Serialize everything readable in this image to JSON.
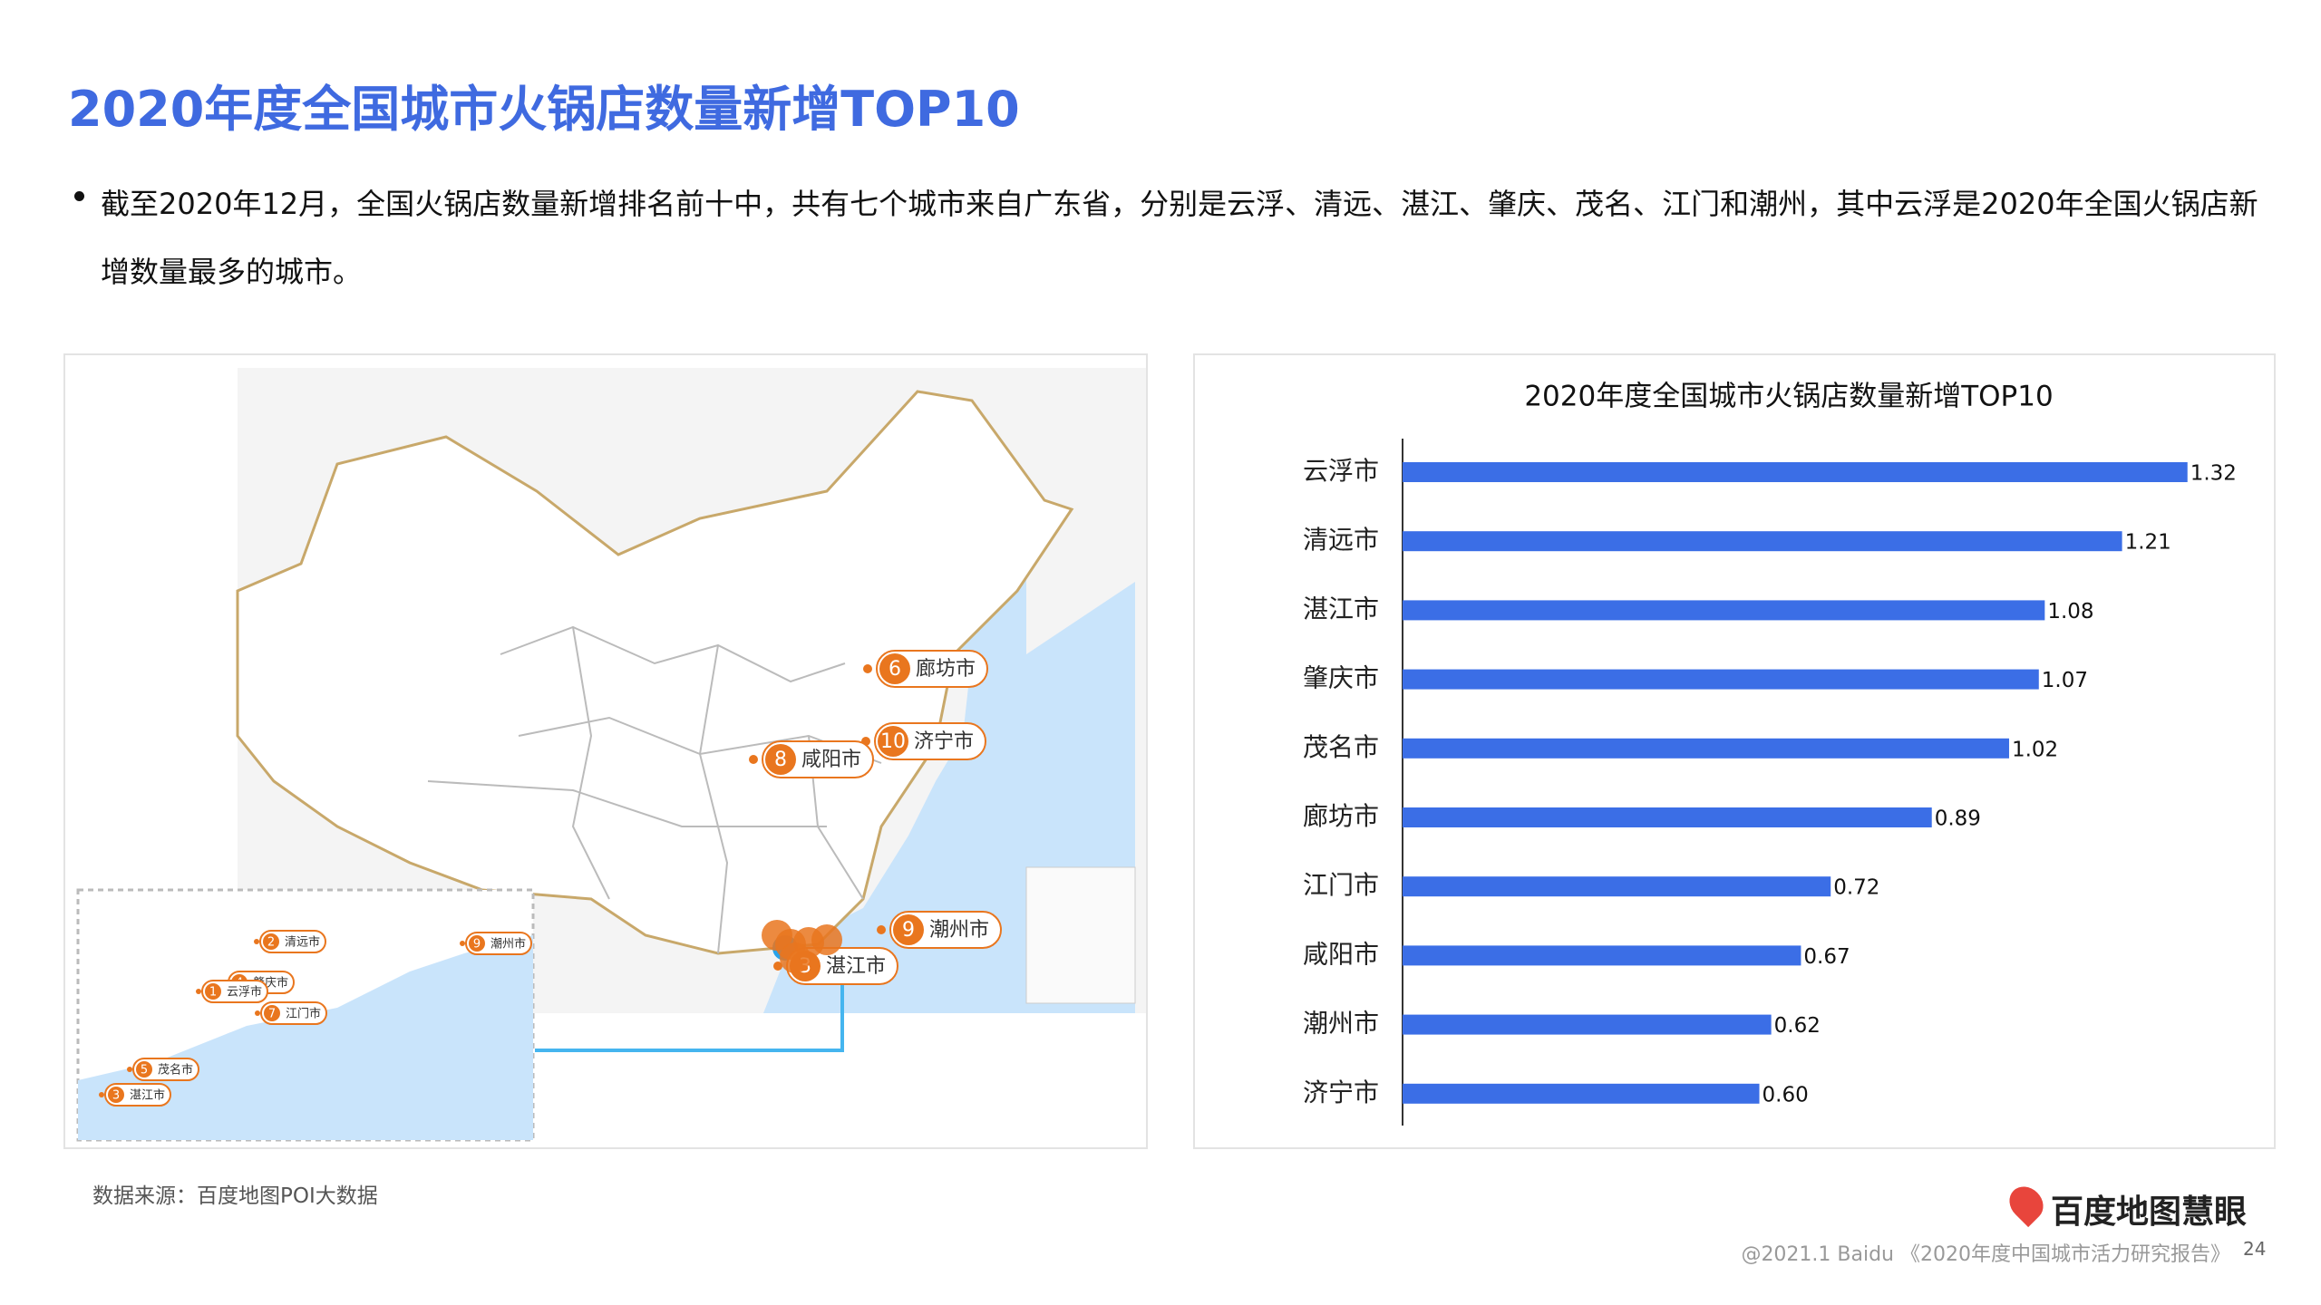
{
  "header": {
    "title": "2020年度全国城市火锅店数量新增TOP10",
    "bullet": "截至2020年12月，全国火锅店数量新增排名前十中，共有七个城市来自广东省，分别是云浮、清远、湛江、肇庆、茂名、江门和潮州，其中云浮是2020年全国火锅店新增数量最多的城市。"
  },
  "map": {
    "markers": [
      {
        "rank": 6,
        "label": "廊坊市"
      },
      {
        "rank": 10,
        "label": "济宁市"
      },
      {
        "rank": 8,
        "label": "咸阳市"
      },
      {
        "rank": 9,
        "label": "潮州市"
      },
      {
        "rank": 3,
        "label": "湛江市"
      }
    ],
    "inset_markers": [
      {
        "rank": 2,
        "label": "清远市"
      },
      {
        "rank": 9,
        "label": "潮州市"
      },
      {
        "rank": 4,
        "label": "肇庆市"
      },
      {
        "rank": 1,
        "label": "云浮市"
      },
      {
        "rank": 7,
        "label": "江门市"
      },
      {
        "rank": 5,
        "label": "茂名市"
      },
      {
        "rank": 3,
        "label": "湛江市"
      }
    ]
  },
  "chart_data": {
    "type": "bar",
    "orientation": "horizontal",
    "title": "2020年度全国城市火锅店数量新增TOP10",
    "categories": [
      "云浮市",
      "清远市",
      "湛江市",
      "肇庆市",
      "茂名市",
      "廊坊市",
      "江门市",
      "咸阳市",
      "潮州市",
      "济宁市"
    ],
    "values": [
      1.32,
      1.21,
      1.08,
      1.07,
      1.02,
      0.89,
      0.72,
      0.67,
      0.62,
      0.6
    ],
    "value_labels": [
      "1.32",
      "1.21",
      "1.08",
      "1.07",
      "1.02",
      "0.89",
      "0.72",
      "0.67",
      "0.62",
      "0.60"
    ],
    "color": "#3b6ee6",
    "xlim": [
      0,
      1.45
    ]
  },
  "footer": {
    "source": "数据来源：百度地图POI大数据",
    "logo": "百度地图慧眼",
    "copyright": "@2021.1 Baidu 《2020年度中国城市活力研究报告》",
    "page": "24"
  }
}
